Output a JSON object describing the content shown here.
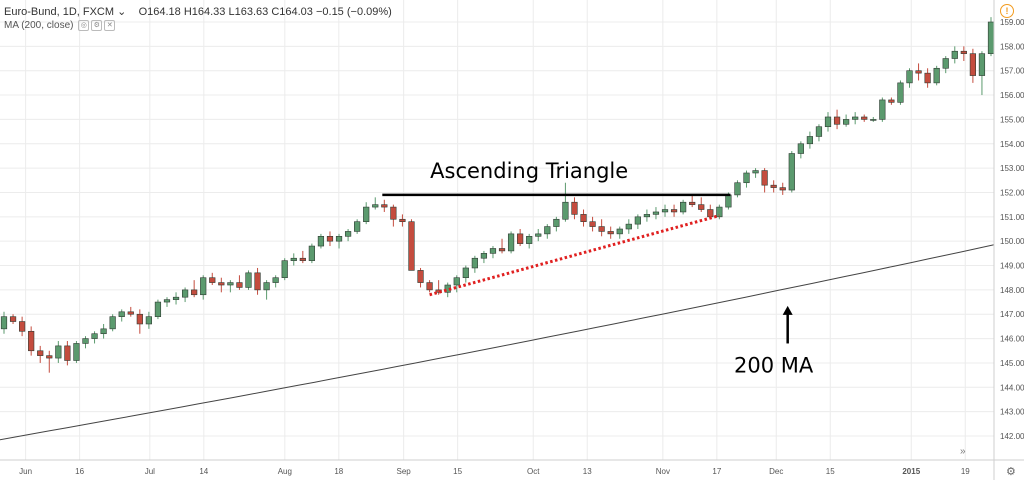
{
  "legend": {
    "symbol": "Euro-Bund, 1D, FXCM",
    "chevron": "⌄",
    "open": "O164.18",
    "high": "H164.33",
    "low": "L163.63",
    "close": "C164.03",
    "change": "−0.15 (−0.09%)",
    "ma_label": "MA (200, close)"
  },
  "colors": {
    "up": "#5b9a6e",
    "down": "#c44c3e",
    "ma": "#444444",
    "support": "#e02020",
    "grid": "#ececec",
    "warning": "#f29b1f"
  },
  "chart_data": {
    "type": "candlestick",
    "ylim": [
      141.5,
      159.5
    ],
    "y_ticks": [
      "142.00",
      "143.00",
      "144.00",
      "145.00",
      "146.00",
      "147.00",
      "148.00",
      "149.00",
      "150.00",
      "151.00",
      "152.00",
      "153.00",
      "154.00",
      "155.00",
      "156.00",
      "157.00",
      "158.00",
      "159.00"
    ],
    "x_ticks": [
      "Jun",
      "16",
      "Jul",
      "14",
      "Aug",
      "18",
      "Sep",
      "15",
      "Oct",
      "13",
      "Nov",
      "17",
      "Dec",
      "15",
      "2015",
      "19"
    ],
    "up_color": "green",
    "down_color": "red",
    "candles": [
      [
        146.4,
        147.1,
        146.2,
        146.9
      ],
      [
        146.9,
        147.0,
        146.6,
        146.7
      ],
      [
        146.7,
        146.9,
        146.1,
        146.3
      ],
      [
        146.3,
        146.5,
        145.3,
        145.5
      ],
      [
        145.5,
        145.7,
        145.0,
        145.3
      ],
      [
        145.3,
        145.5,
        144.6,
        145.2
      ],
      [
        145.2,
        145.9,
        145.0,
        145.7
      ],
      [
        145.7,
        145.9,
        144.9,
        145.1
      ],
      [
        145.1,
        145.9,
        145.0,
        145.8
      ],
      [
        145.8,
        146.1,
        145.6,
        146.0
      ],
      [
        146.0,
        146.3,
        145.8,
        146.2
      ],
      [
        146.2,
        146.6,
        146.0,
        146.4
      ],
      [
        146.4,
        147.0,
        146.3,
        146.9
      ],
      [
        146.9,
        147.2,
        146.7,
        147.1
      ],
      [
        147.1,
        147.3,
        146.9,
        147.0
      ],
      [
        147.0,
        147.2,
        146.2,
        146.6
      ],
      [
        146.6,
        147.1,
        146.4,
        146.9
      ],
      [
        146.9,
        147.6,
        146.8,
        147.5
      ],
      [
        147.5,
        147.7,
        147.3,
        147.6
      ],
      [
        147.6,
        147.9,
        147.4,
        147.7
      ],
      [
        147.7,
        148.1,
        147.5,
        148.0
      ],
      [
        148.0,
        148.4,
        147.7,
        147.8
      ],
      [
        147.8,
        148.6,
        147.6,
        148.5
      ],
      [
        148.5,
        148.7,
        148.2,
        148.3
      ],
      [
        148.3,
        148.5,
        147.9,
        148.2
      ],
      [
        148.2,
        148.4,
        147.9,
        148.3
      ],
      [
        148.3,
        148.6,
        148.0,
        148.1
      ],
      [
        148.1,
        148.8,
        148.0,
        148.7
      ],
      [
        148.7,
        148.9,
        147.8,
        148.0
      ],
      [
        148.0,
        148.4,
        147.6,
        148.3
      ],
      [
        148.3,
        148.6,
        148.1,
        148.5
      ],
      [
        148.5,
        149.3,
        148.4,
        149.2
      ],
      [
        149.2,
        149.5,
        149.0,
        149.3
      ],
      [
        149.3,
        149.6,
        149.1,
        149.2
      ],
      [
        149.2,
        149.9,
        149.1,
        149.8
      ],
      [
        149.8,
        150.3,
        149.7,
        150.2
      ],
      [
        150.2,
        150.4,
        149.8,
        150.0
      ],
      [
        150.0,
        150.3,
        149.7,
        150.2
      ],
      [
        150.2,
        150.5,
        150.0,
        150.4
      ],
      [
        150.4,
        150.9,
        150.3,
        150.8
      ],
      [
        150.8,
        151.6,
        150.7,
        151.4
      ],
      [
        151.4,
        151.8,
        151.3,
        151.5
      ],
      [
        151.5,
        151.7,
        151.2,
        151.4
      ],
      [
        151.4,
        151.5,
        150.6,
        150.9
      ],
      [
        150.9,
        151.1,
        150.6,
        150.8
      ],
      [
        150.8,
        150.9,
        148.8,
        148.8
      ],
      [
        148.8,
        148.9,
        148.1,
        148.3
      ],
      [
        148.3,
        148.4,
        147.9,
        148.0
      ],
      [
        148.0,
        148.4,
        147.8,
        147.9
      ],
      [
        147.9,
        148.3,
        147.7,
        148.2
      ],
      [
        148.2,
        148.6,
        147.9,
        148.5
      ],
      [
        148.5,
        149.0,
        148.3,
        148.9
      ],
      [
        148.9,
        149.4,
        148.7,
        149.3
      ],
      [
        149.3,
        149.6,
        149.1,
        149.5
      ],
      [
        149.5,
        149.8,
        149.3,
        149.7
      ],
      [
        149.7,
        150.1,
        149.5,
        149.6
      ],
      [
        149.6,
        150.4,
        149.5,
        150.3
      ],
      [
        150.3,
        150.5,
        149.8,
        149.9
      ],
      [
        149.9,
        150.3,
        149.7,
        150.2
      ],
      [
        150.2,
        150.5,
        150.0,
        150.3
      ],
      [
        150.3,
        150.7,
        150.1,
        150.6
      ],
      [
        150.6,
        151.0,
        150.4,
        150.9
      ],
      [
        150.9,
        152.4,
        150.8,
        151.6
      ],
      [
        151.6,
        151.8,
        150.9,
        151.1
      ],
      [
        151.1,
        151.3,
        150.6,
        150.8
      ],
      [
        150.8,
        151.0,
        150.4,
        150.6
      ],
      [
        150.6,
        150.9,
        150.2,
        150.4
      ],
      [
        150.4,
        150.6,
        150.1,
        150.3
      ],
      [
        150.3,
        150.6,
        150.1,
        150.5
      ],
      [
        150.5,
        150.9,
        150.3,
        150.7
      ],
      [
        150.7,
        151.1,
        150.5,
        151.0
      ],
      [
        151.0,
        151.3,
        150.8,
        151.1
      ],
      [
        151.1,
        151.4,
        150.9,
        151.2
      ],
      [
        151.2,
        151.5,
        151.0,
        151.3
      ],
      [
        151.3,
        151.5,
        151.0,
        151.2
      ],
      [
        151.2,
        151.7,
        151.1,
        151.6
      ],
      [
        151.6,
        151.9,
        151.4,
        151.5
      ],
      [
        151.5,
        151.8,
        151.2,
        151.3
      ],
      [
        151.3,
        151.5,
        150.9,
        151.0
      ],
      [
        151.0,
        151.5,
        150.9,
        151.4
      ],
      [
        151.4,
        152.0,
        151.3,
        151.9
      ],
      [
        151.9,
        152.5,
        151.8,
        152.4
      ],
      [
        152.4,
        152.9,
        152.2,
        152.8
      ],
      [
        152.8,
        153.0,
        152.6,
        152.9
      ],
      [
        152.9,
        153.0,
        152.0,
        152.3
      ],
      [
        152.3,
        152.5,
        152.0,
        152.2
      ],
      [
        152.2,
        152.4,
        151.9,
        152.1
      ],
      [
        152.1,
        153.7,
        152.0,
        153.6
      ],
      [
        153.6,
        154.1,
        153.4,
        154.0
      ],
      [
        154.0,
        154.5,
        153.8,
        154.3
      ],
      [
        154.3,
        154.8,
        154.1,
        154.7
      ],
      [
        154.7,
        155.3,
        154.5,
        155.1
      ],
      [
        155.1,
        155.4,
        154.6,
        154.8
      ],
      [
        154.8,
        155.2,
        154.7,
        155.0
      ],
      [
        155.0,
        155.3,
        154.8,
        155.1
      ],
      [
        155.1,
        155.2,
        154.9,
        155.0
      ],
      [
        155.0,
        155.1,
        154.9,
        155.0
      ],
      [
        155.0,
        155.9,
        154.9,
        155.8
      ],
      [
        155.8,
        155.9,
        155.6,
        155.7
      ],
      [
        155.7,
        156.6,
        155.6,
        156.5
      ],
      [
        156.5,
        157.1,
        156.3,
        157.0
      ],
      [
        157.0,
        157.3,
        156.6,
        156.9
      ],
      [
        156.9,
        157.1,
        156.3,
        156.5
      ],
      [
        156.5,
        157.2,
        156.4,
        157.1
      ],
      [
        157.1,
        157.6,
        156.9,
        157.5
      ],
      [
        157.5,
        158.0,
        157.3,
        157.8
      ],
      [
        157.8,
        158.0,
        157.4,
        157.7
      ],
      [
        157.7,
        157.9,
        156.5,
        156.8
      ],
      [
        156.8,
        157.8,
        156.0,
        157.7
      ],
      [
        157.7,
        159.2,
        157.6,
        159.0
      ]
    ],
    "ma_200": {
      "name": "MA (200, close)",
      "start": 141.85,
      "end": 149.85
    },
    "resistance_line": {
      "from_bar": 42,
      "to_bar": 80,
      "value": 151.9
    },
    "support_line": {
      "from_bar": 47,
      "to_bar": 79,
      "from_value": 147.8,
      "to_value": 151.05
    },
    "annotations": [
      {
        "text": "Ascending Triangle",
        "bar": 58,
        "value": 152.6
      },
      {
        "text": "200 MA",
        "bar": 85,
        "value": 144.6,
        "arrow_from": 145.8,
        "arrow_to": 147.3
      }
    ]
  }
}
